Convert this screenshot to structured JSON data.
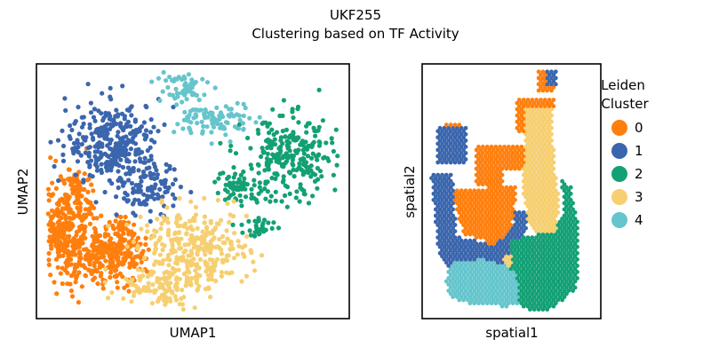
{
  "figure": {
    "title_line1": "UKF255",
    "title_line2": "Clustering based on TF Activity"
  },
  "legend": {
    "title_line1": "Leiden",
    "title_line2": "Cluster"
  },
  "chart_data": [
    {
      "type": "scatter",
      "title": "",
      "xlabel": "UMAP1",
      "ylabel": "UMAP2",
      "xticks": [],
      "yticks": [],
      "grid": false,
      "series": [
        {
          "name": "0",
          "color": "#ff7f0e",
          "regions": [
            {
              "center": [
                1.6,
                5.5
              ],
              "spread": [
                1.3,
                3.2
              ],
              "n": 340
            },
            {
              "center": [
                3.8,
                4.0
              ],
              "spread": [
                1.6,
                1.6
              ],
              "n": 260
            },
            {
              "center": [
                2.2,
                8.1
              ],
              "spread": [
                0.6,
                0.9
              ],
              "n": 40
            },
            {
              "center": [
                4.4,
                5.8
              ],
              "spread": [
                0.5,
                0.6
              ],
              "n": 25
            }
          ]
        },
        {
          "name": "1",
          "color": "#3b66ad",
          "regions": [
            {
              "center": [
                4.0,
                11.0
              ],
              "spread": [
                2.2,
                2.4
              ],
              "n": 330
            },
            {
              "center": [
                5.8,
                8.0
              ],
              "spread": [
                1.4,
                1.4
              ],
              "n": 90
            }
          ]
        },
        {
          "name": "2",
          "color": "#13a075",
          "regions": [
            {
              "center": [
                13.0,
                10.0
              ],
              "spread": [
                2.2,
                2.4
              ],
              "n": 260
            },
            {
              "center": [
                10.4,
                8.3
              ],
              "spread": [
                1.2,
                1.0
              ],
              "n": 60
            },
            {
              "center": [
                11.4,
                5.8
              ],
              "spread": [
                0.8,
                0.6
              ],
              "n": 30
            }
          ]
        },
        {
          "name": "3",
          "color": "#f6cf71",
          "regions": [
            {
              "center": [
                8.0,
                4.3
              ],
              "spread": [
                2.6,
                2.3
              ],
              "n": 330
            },
            {
              "center": [
                6.2,
                2.0
              ],
              "spread": [
                1.8,
                1.0
              ],
              "n": 90
            }
          ]
        },
        {
          "name": "4",
          "color": "#66c5cc",
          "regions": [
            {
              "center": [
                7.3,
                14.5
              ],
              "spread": [
                1.3,
                1.1
              ],
              "n": 60
            },
            {
              "center": [
                9.3,
                12.5
              ],
              "spread": [
                1.8,
                1.0
              ],
              "n": 90
            }
          ]
        }
      ]
    },
    {
      "type": "scatter",
      "title": "",
      "xlabel": "spatial1",
      "ylabel": "spatial2",
      "xticks": [],
      "yticks": [],
      "grid": false,
      "series": [
        {
          "name": "0",
          "color": "#ff7f0e",
          "polygons": [
            [
              [
                3.0,
                11.5
              ],
              [
                6.0,
                11.5
              ],
              [
                6.0,
                10.0
              ],
              [
                4.5,
                10.0
              ],
              [
                4.5,
                8.8
              ],
              [
                3.0,
                8.8
              ]
            ],
            [
              [
                1.6,
                8.7
              ],
              [
                5.3,
                8.8
              ],
              [
                5.0,
                5.8
              ],
              [
                4.0,
                4.8
              ],
              [
                3.3,
                5.3
              ],
              [
                2.3,
                5.6
              ]
            ],
            [
              [
                1.3,
                13.0
              ],
              [
                2.2,
                13.0
              ],
              [
                2.2,
                12.0
              ],
              [
                1.3,
                12.0
              ]
            ],
            [
              [
                5.3,
                14.8
              ],
              [
                7.4,
                14.8
              ],
              [
                7.4,
                13.8
              ],
              [
                6.9,
                13.8
              ],
              [
                6.9,
                12.8
              ],
              [
                5.3,
                12.3
              ]
            ],
            [
              [
                6.5,
                16.6
              ],
              [
                7.4,
                16.6
              ],
              [
                7.4,
                15.2
              ],
              [
                6.5,
                15.2
              ]
            ]
          ]
        },
        {
          "name": "1",
          "color": "#3b66ad",
          "polygons": [
            [
              [
                0.8,
                12.8
              ],
              [
                2.5,
                12.8
              ],
              [
                2.5,
                10.3
              ],
              [
                0.8,
                10.3
              ]
            ],
            [
              [
                0.5,
                9.6
              ],
              [
                1.7,
                9.6
              ],
              [
                1.9,
                5.5
              ],
              [
                4.0,
                4.9
              ],
              [
                5.0,
                5.9
              ],
              [
                5.2,
                7.2
              ],
              [
                6.0,
                7.2
              ],
              [
                5.5,
                3.8
              ],
              [
                3.2,
                1.2
              ],
              [
                1.5,
                3.2
              ],
              [
                0.9,
                4.6
              ]
            ],
            [
              [
                7.0,
                16.6
              ],
              [
                7.6,
                16.6
              ],
              [
                7.6,
                15.6
              ],
              [
                7.0,
                15.6
              ]
            ]
          ]
        },
        {
          "name": "2",
          "color": "#13a075",
          "polygons": [
            [
              [
                4.9,
                5.3
              ],
              [
                7.4,
                5.8
              ],
              [
                7.9,
                7.1
              ],
              [
                7.8,
                9.2
              ],
              [
                8.3,
                8.9
              ],
              [
                8.8,
                6.0
              ],
              [
                8.8,
                3.1
              ],
              [
                8.6,
                1.9
              ],
              [
                7.0,
                0.5
              ],
              [
                6.2,
                0.5
              ],
              [
                5.5,
                0.9
              ],
              [
                4.9,
                2.1
              ]
            ]
          ]
        },
        {
          "name": "3",
          "color": "#f6cf71",
          "polygons": [
            [
              [
                5.7,
                14.0
              ],
              [
                7.3,
                14.0
              ],
              [
                7.4,
                10.0
              ],
              [
                7.7,
                8.1
              ],
              [
                7.5,
                5.7
              ],
              [
                6.4,
                5.8
              ],
              [
                5.9,
                6.7
              ],
              [
                5.6,
                8.5
              ],
              [
                5.7,
                10.5
              ]
            ],
            [
              [
                4.6,
                4.2
              ],
              [
                5.0,
                4.2
              ],
              [
                5.0,
                3.5
              ],
              [
                4.6,
                3.5
              ]
            ]
          ]
        },
        {
          "name": "4",
          "color": "#66c5cc",
          "polygons": [
            [
              [
                1.6,
                3.7
              ],
              [
                3.3,
                4.0
              ],
              [
                4.6,
                3.6
              ],
              [
                5.3,
                2.9
              ],
              [
                5.4,
                1.0
              ],
              [
                4.7,
                0.8
              ],
              [
                3.0,
                0.9
              ],
              [
                1.7,
                1.3
              ],
              [
                1.3,
                2.3
              ]
            ]
          ]
        }
      ]
    }
  ]
}
